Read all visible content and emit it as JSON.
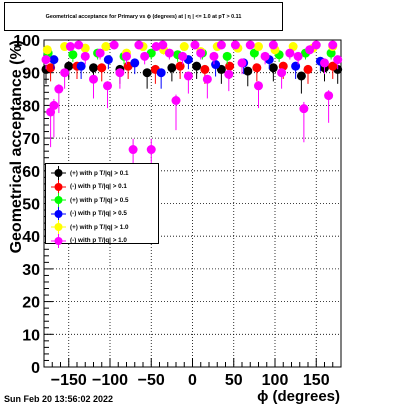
{
  "header": {
    "title": "Geometrical acceptance for Primary vs ϕ (degrees) at |  η | <= 1.0 at pT > 0.11"
  },
  "footer": {
    "timestamp": "Sun Feb 20 13:56:02 2022"
  },
  "chart_data": {
    "type": "scatter",
    "title": "Geometrical acceptance for Primary vs ϕ (degrees) at |  η | <= 1.0 at pT > 0.11",
    "xlabel": "ϕ (degrees)",
    "ylabel": "Geometrical acceptance (%)",
    "xlim": [
      -180,
      180
    ],
    "ylim": [
      0,
      100
    ],
    "x_ticks": [
      -150,
      -100,
      -50,
      0,
      50,
      100,
      150
    ],
    "x_tick_labels": [
      "−150",
      "−100",
      "−50",
      "0",
      "50",
      "100",
      "150"
    ],
    "y_ticks": [
      0,
      10,
      20,
      30,
      40,
      50,
      60,
      70,
      80,
      90,
      100
    ],
    "grid": true,
    "legend_position": "center-left",
    "series": [
      {
        "name": "(+) with p T/|q| > 0.1",
        "color": "#000000",
        "points": [
          [
            -178,
            91
          ],
          [
            -150,
            92
          ],
          [
            -120,
            91.5
          ],
          [
            -88,
            91
          ],
          [
            -55,
            90
          ],
          [
            -25,
            91.5
          ],
          [
            5,
            92
          ],
          [
            35,
            91
          ],
          [
            67,
            90.5
          ],
          [
            98,
            91.5
          ],
          [
            132,
            89
          ],
          [
            160,
            91.5
          ],
          [
            176,
            91
          ]
        ]
      },
      {
        "name": "(-) with p T/|q| > 0.1",
        "color": "#ff0000",
        "points": [
          [
            -172,
            91.5
          ],
          [
            -140,
            92
          ],
          [
            -110,
            91.5
          ],
          [
            -78,
            92
          ],
          [
            -45,
            91
          ],
          [
            -15,
            92
          ],
          [
            15,
            91
          ],
          [
            45,
            92
          ],
          [
            78,
            91.5
          ],
          [
            110,
            92
          ],
          [
            140,
            91
          ],
          [
            170,
            92
          ]
        ]
      },
      {
        "name": "(+) with p T/|q| > 0.5",
        "color": "#00ff00",
        "points": [
          [
            -175,
            96
          ],
          [
            -145,
            95.5
          ],
          [
            -115,
            96
          ],
          [
            -83,
            95
          ],
          [
            -50,
            96
          ],
          [
            -18,
            95.5
          ],
          [
            12,
            96
          ],
          [
            42,
            95
          ],
          [
            75,
            96
          ],
          [
            105,
            95.5
          ],
          [
            137,
            96
          ],
          [
            168,
            96
          ]
        ]
      },
      {
        "name": "(-) with p T/|q| > 0.5",
        "color": "#0000ff",
        "points": [
          [
            -168,
            94
          ],
          [
            -135,
            92
          ],
          [
            -102,
            94
          ],
          [
            -70,
            93
          ],
          [
            -38,
            90
          ],
          [
            -5,
            94
          ],
          [
            28,
            92.5
          ],
          [
            62,
            93
          ],
          [
            93,
            94
          ],
          [
            125,
            92
          ],
          [
            155,
            93.5
          ]
        ]
      },
      {
        "name": "(+) with p T/|q| > 1.0",
        "color": "#ffff00",
        "points": [
          [
            -176,
            97
          ],
          [
            -155,
            98
          ],
          [
            -130,
            97.5
          ],
          [
            -105,
            98
          ],
          [
            -80,
            96
          ],
          [
            -60,
            98
          ],
          [
            -35,
            97
          ],
          [
            -10,
            98
          ],
          [
            10,
            96.5
          ],
          [
            30,
            98
          ],
          [
            55,
            97.5
          ],
          [
            80,
            98
          ],
          [
            100,
            97
          ],
          [
            122,
            98
          ],
          [
            146,
            97.5
          ],
          [
            170,
            98
          ]
        ]
      },
      {
        "name": "(-) with p T/|q| > 1.0",
        "color": "#ff00ff",
        "points": [
          [
            -178,
            94
          ],
          [
            -172,
            78
          ],
          [
            -168,
            80
          ],
          [
            -162,
            85
          ],
          [
            -155,
            90
          ],
          [
            -148,
            98
          ],
          [
            -138,
            99
          ],
          [
            -130,
            95
          ],
          [
            -120,
            88
          ],
          [
            -112,
            96
          ],
          [
            -103,
            86
          ],
          [
            -95,
            99
          ],
          [
            -88,
            90
          ],
          [
            -80,
            95
          ],
          [
            -72,
            66.5
          ],
          [
            -65,
            99
          ],
          [
            -58,
            95
          ],
          [
            -50,
            66.5
          ],
          [
            -44,
            98
          ],
          [
            -36,
            99
          ],
          [
            -28,
            96
          ],
          [
            -20,
            81.5
          ],
          [
            -12,
            95
          ],
          [
            -5,
            89
          ],
          [
            3,
            99
          ],
          [
            10,
            96
          ],
          [
            18,
            88
          ],
          [
            26,
            95
          ],
          [
            35,
            99
          ],
          [
            44,
            89.5
          ],
          [
            52,
            99
          ],
          [
            60,
            93
          ],
          [
            70,
            99
          ],
          [
            80,
            86
          ],
          [
            88,
            95
          ],
          [
            98,
            99
          ],
          [
            108,
            90
          ],
          [
            118,
            96
          ],
          [
            128,
            95
          ],
          [
            135,
            79
          ],
          [
            142,
            97
          ],
          [
            150,
            99
          ],
          [
            160,
            93
          ],
          [
            165,
            83
          ],
          [
            170,
            99
          ],
          [
            176,
            94
          ]
        ]
      }
    ]
  }
}
